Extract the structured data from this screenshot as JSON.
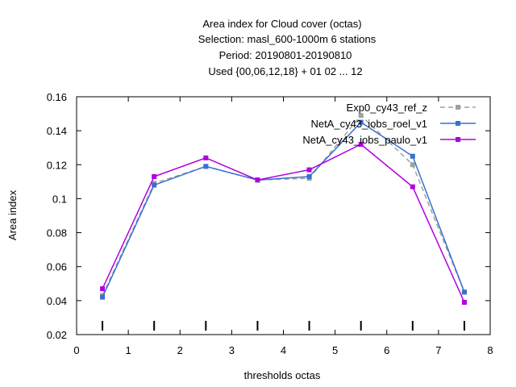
{
  "chart_data": {
    "type": "line",
    "title_lines": [
      "Area index  for Cloud cover (octas)",
      "Selection: masl_600-1000m      6 stations",
      "Period: 20190801-20190810",
      "Used {00,06,12,18} + 01 02 ... 12"
    ],
    "xlabel": "thresholds octas",
    "ylabel": "Area index",
    "xlim": [
      0,
      8
    ],
    "ylim": [
      0.02,
      0.16
    ],
    "x_ticks": [
      0,
      1,
      2,
      3,
      4,
      5,
      6,
      7,
      8
    ],
    "y_ticks": [
      0.02,
      0.04,
      0.06,
      0.08,
      0.1,
      0.12,
      0.14,
      0.16
    ],
    "x_tick_labels": [
      "0",
      "1",
      "2",
      "3",
      "4",
      "5",
      "6",
      "7",
      "8"
    ],
    "y_tick_labels": [
      "0.02",
      "0.04",
      "0.06",
      "0.08",
      "0.1",
      "0.12",
      "0.14",
      "0.16"
    ],
    "grid": false,
    "legend_position": "top-right",
    "x": [
      0.5,
      1.5,
      2.5,
      3.5,
      4.5,
      5.5,
      6.5,
      7.5
    ],
    "series": [
      {
        "name": "Exp0_cy43_ref_z",
        "color": "#a0a0a0",
        "dash": "dashed",
        "values": [
          0.043,
          0.109,
          0.119,
          0.111,
          0.112,
          0.149,
          0.12,
          0.045
        ]
      },
      {
        "name": "NetA_cy43_iobs_roel_v1",
        "color": "#3a6fd0",
        "dash": "solid",
        "values": [
          0.042,
          0.108,
          0.119,
          0.111,
          0.113,
          0.145,
          0.125,
          0.045
        ]
      },
      {
        "name": "NetA_cy43_iobs_paulo_v1",
        "color": "#b000e0",
        "dash": "solid",
        "values": [
          0.047,
          0.113,
          0.124,
          0.111,
          0.117,
          0.132,
          0.107,
          0.039
        ]
      }
    ]
  }
}
